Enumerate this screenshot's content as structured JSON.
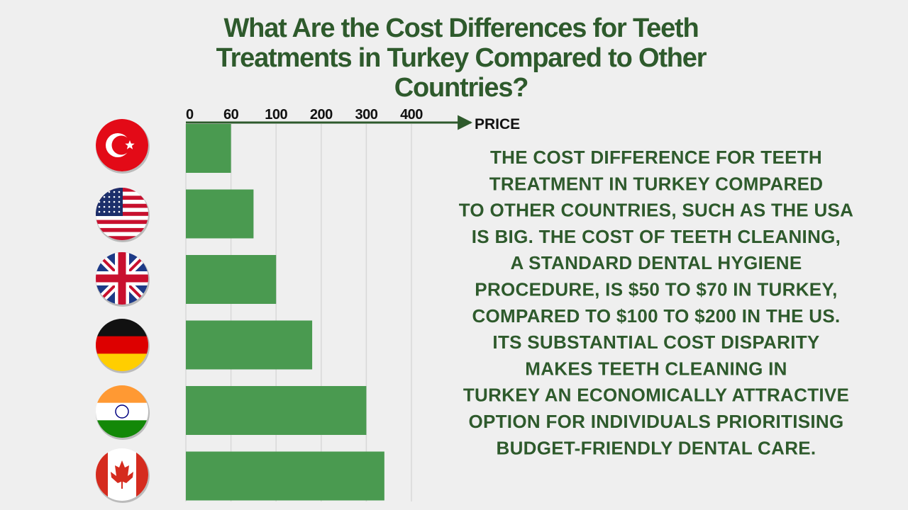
{
  "chart_data": {
    "type": "bar",
    "orientation": "horizontal",
    "title_lines": [
      "What Are the Cost Differences for Teeth",
      "Treatments in Turkey Compared to Other",
      "Countries?"
    ],
    "x_label": "PRICE",
    "categories": [
      null,
      null,
      null,
      null,
      null,
      null
    ],
    "values": [
      60,
      80,
      100,
      180,
      300,
      340
    ],
    "color": "#4a9a50",
    "xlim": [
      0,
      400
    ],
    "xticks": [
      0,
      60,
      100,
      200,
      300,
      400
    ],
    "grid": true,
    "description_lines": [
      "THE COST DIFFERENCE FOR TEETH",
      "TREATMENT IN TURKEY COMPARED",
      "TO OTHER COUNTRIES, SUCH AS THE USA",
      "IS BIG. THE COST OF TEETH CLEANING,",
      "A STANDARD DENTAL HYGIENE",
      "PROCEDURE, IS $50 TO $70 IN TURKEY,",
      "COMPARED TO $100 TO $200 IN THE US.",
      "ITS SUBSTANTIAL COST DISPARITY",
      "MAKES TEETH CLEANING IN",
      "TURKEY AN ECONOMICALLY ATTRACTIVE",
      "OPTION FOR INDIVIDUALS PRIORITISING",
      "BUDGET-FRIENDLY DENTAL CARE."
    ]
  }
}
